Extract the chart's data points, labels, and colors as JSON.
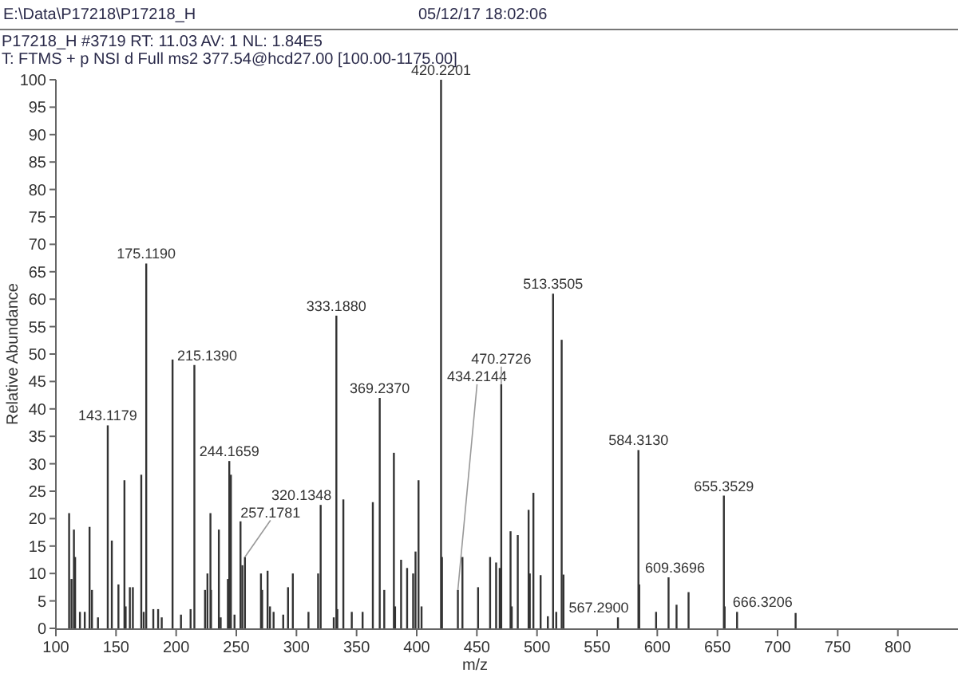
{
  "chart_data": {
    "type": "bar",
    "title": "P17218_H #3719  RT: 11.03  AV: 1  NL: 1.84E5",
    "subtitle": "T: FTMS + p NSI d Full ms2 377.54@hcd27.00 [100.00-1175.00]",
    "xlabel": "m/z",
    "ylabel": "Relative Abundance",
    "x": [
      111,
      113,
      115,
      116,
      120,
      124,
      128,
      130,
      135,
      143.1179,
      146.5,
      152,
      157,
      158,
      161.5,
      164,
      171,
      173,
      175.119,
      181,
      185,
      188,
      197,
      204,
      212,
      215.139,
      224,
      226,
      228.5,
      229,
      235.5,
      237,
      243,
      244.1659,
      245.5,
      248.5,
      253.5,
      255,
      257.1781,
      270.5,
      271.5,
      276,
      278,
      281,
      289,
      293,
      297,
      310,
      318,
      320.1348,
      331,
      333.188,
      334,
      339,
      346,
      355,
      363.5,
      369.237,
      373,
      381,
      382,
      387,
      392,
      397,
      399,
      401.5,
      404,
      420.2201,
      421,
      434.2144,
      438,
      451,
      461,
      466,
      469,
      470.2726,
      478,
      479,
      484,
      493,
      494,
      497,
      503,
      509,
      513.3505,
      516,
      520.5,
      522,
      567.29,
      584.313,
      585,
      599,
      609.3696,
      616,
      626,
      655.3529,
      656,
      666.3206,
      715
    ],
    "values": [
      21,
      9,
      18,
      13,
      3,
      3,
      18.5,
      7,
      2,
      37,
      16,
      8,
      27,
      4,
      7.5,
      7.5,
      28,
      3,
      66.5,
      3.5,
      3.5,
      2,
      49,
      2.5,
      3.5,
      48,
      7,
      10,
      21,
      7,
      18,
      2,
      9,
      30.5,
      28,
      2.5,
      19.5,
      11.5,
      13,
      10,
      7,
      10.5,
      4,
      3,
      2.5,
      7.5,
      10,
      3,
      10,
      22.5,
      2,
      57,
      3.5,
      23.5,
      3,
      3,
      23,
      42,
      7,
      32,
      4,
      12.5,
      11,
      10,
      14,
      27,
      4,
      100,
      13,
      7,
      13,
      7.5,
      13,
      12,
      11,
      44.5,
      17.7,
      4,
      17,
      21.6,
      10,
      24.7,
      9.7,
      2.2,
      61,
      3,
      52.6,
      9.8,
      2,
      32.5,
      8,
      3,
      9.3,
      4.3,
      6.6,
      24.2,
      4,
      3,
      2.8
    ],
    "color": "#333333",
    "xlim": [
      100,
      850
    ],
    "xticks": [
      100,
      150,
      200,
      250,
      300,
      350,
      400,
      450,
      500,
      550,
      600,
      650,
      700,
      750,
      800
    ],
    "ylim": [
      0,
      100
    ],
    "yticks": [
      0,
      5,
      10,
      15,
      20,
      25,
      30,
      35,
      40,
      45,
      50,
      55,
      60,
      65,
      70,
      75,
      80,
      85,
      90,
      95,
      100
    ],
    "annotations": [
      "E:\\Data\\P17218\\P17218_H",
      "05/12/17 18:02:06",
      {
        "text": "143.1179",
        "x": 143.1179,
        "y": 37
      },
      {
        "text": "175.1190",
        "x": 175.119,
        "y": 66.5
      },
      {
        "text": "215.1390",
        "x": 215.139,
        "y": 48
      },
      {
        "text": "244.1659",
        "x": 244.1659,
        "y": 30.5
      },
      {
        "text": "257.1781",
        "x": 257.1781,
        "y": 13
      },
      {
        "text": "320.1348",
        "x": 320.1348,
        "y": 22.5
      },
      {
        "text": "333.1880",
        "x": 333.188,
        "y": 57
      },
      {
        "text": "369.2370",
        "x": 369.237,
        "y": 42
      },
      {
        "text": "420.2201",
        "x": 420.2201,
        "y": 100
      },
      {
        "text": "434.2144",
        "x": 434.2144,
        "y": 7
      },
      {
        "text": "470.2726",
        "x": 470.2726,
        "y": 44.5
      },
      {
        "text": "513.3505",
        "x": 513.3505,
        "y": 61
      },
      {
        "text": "567.2900",
        "x": 567.29,
        "y": 2
      },
      {
        "text": "584.3130",
        "x": 584.313,
        "y": 32.5
      },
      {
        "text": "609.3696",
        "x": 609.3696,
        "y": 9.3
      },
      {
        "text": "655.3529",
        "x": 655.3529,
        "y": 24.2
      },
      {
        "text": "666.3206",
        "x": 666.3206,
        "y": 3
      }
    ]
  }
}
